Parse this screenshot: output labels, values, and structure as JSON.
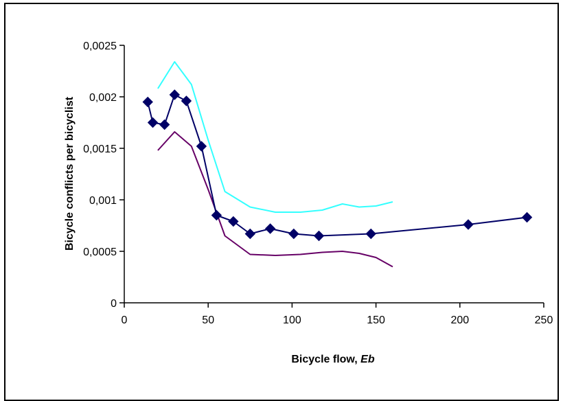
{
  "chart_data": {
    "type": "line",
    "title": "",
    "xlabel": "Bicycle flow, ",
    "xlabel_italic": "Eb",
    "ylabel": "Bicycle conflicts per bicyclist",
    "xlim": [
      0,
      250
    ],
    "ylim": [
      0,
      0.0025
    ],
    "x_ticks": [
      0,
      50,
      100,
      150,
      200,
      250
    ],
    "x_tick_labels": [
      "0",
      "50",
      "100",
      "150",
      "200",
      "250"
    ],
    "y_ticks": [
      0,
      0.0005,
      0.001,
      0.0015,
      0.002,
      0.0025
    ],
    "y_tick_labels": [
      "0",
      "0,0005",
      "0,001",
      "0,0015",
      "0,002",
      "0,0025"
    ],
    "grid": false,
    "legend": "none",
    "series": [
      {
        "color": "#000066",
        "marker": "diamond",
        "x": [
          14,
          17,
          24,
          30,
          37,
          46,
          55,
          65,
          75,
          87,
          101,
          116,
          147,
          205,
          240
        ],
        "y": [
          0.00195,
          0.00175,
          0.00173,
          0.00202,
          0.00196,
          0.00152,
          0.00085,
          0.00079,
          0.00067,
          0.00072,
          0.00067,
          0.00065,
          0.00067,
          0.00076,
          0.00083
        ]
      },
      {
        "color": "#33ffff",
        "marker": "none",
        "x": [
          20,
          30,
          40,
          50,
          60,
          75,
          90,
          105,
          118,
          130,
          140,
          150,
          160
        ],
        "y": [
          0.00208,
          0.00234,
          0.00212,
          0.00158,
          0.00108,
          0.00093,
          0.00088,
          0.00088,
          0.0009,
          0.00096,
          0.00093,
          0.00094,
          0.00098
        ]
      },
      {
        "color": "#660066",
        "marker": "none",
        "x": [
          20,
          30,
          40,
          50,
          60,
          75,
          90,
          105,
          118,
          130,
          140,
          150,
          160
        ],
        "y": [
          0.00148,
          0.00166,
          0.00152,
          0.0011,
          0.00065,
          0.00047,
          0.00046,
          0.00047,
          0.00049,
          0.0005,
          0.00048,
          0.00044,
          0.00035
        ]
      }
    ]
  }
}
